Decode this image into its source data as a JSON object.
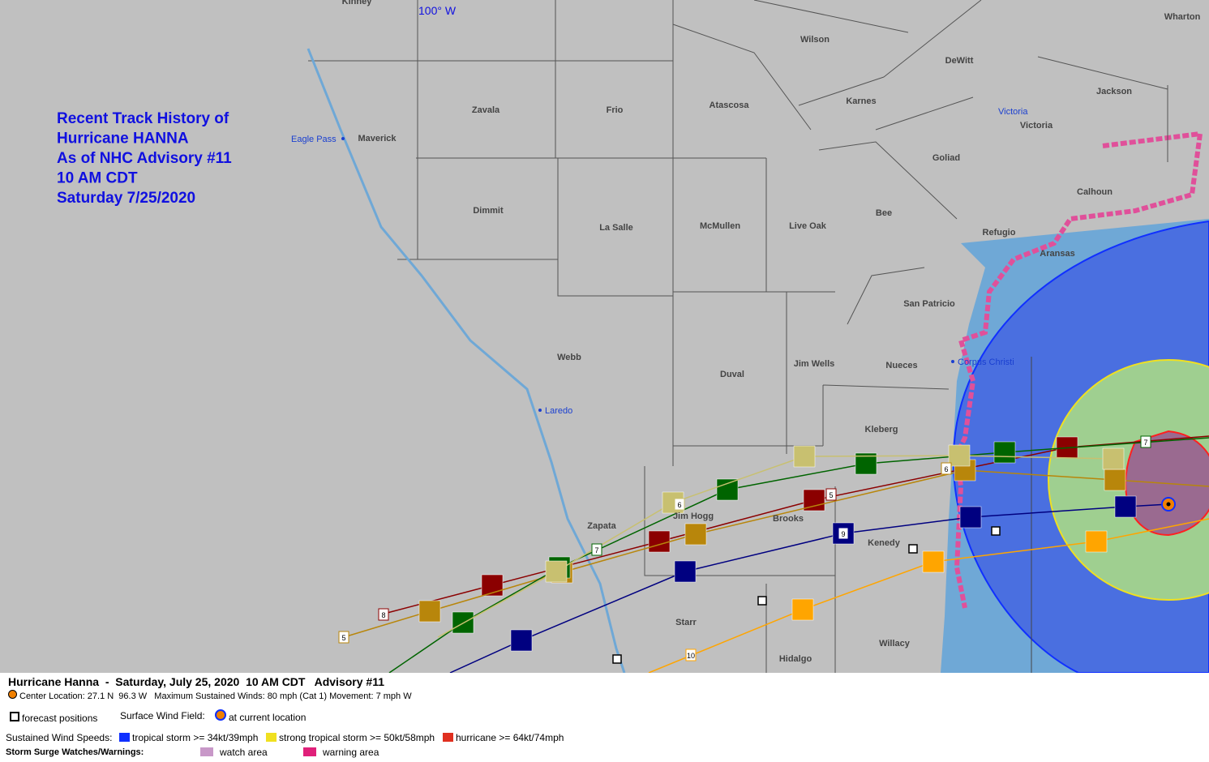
{
  "title_lines": [
    "Recent Track History of",
    "Hurricane HANNA",
    "As of NHC Advisory #11",
    "10 AM CDT",
    "Saturday 7/25/2020"
  ],
  "longitude_label": "100° W",
  "counties": [
    "Kinney",
    "Wharton",
    "Wilson",
    "DeWitt",
    "Jackson",
    "Zavala",
    "Frio",
    "Atascosa",
    "Karnes",
    "Victoria",
    "Maverick",
    "Goliad",
    "Calhoun",
    "Dimmit",
    "La Salle",
    "McMullen",
    "Live Oak",
    "Bee",
    "Refugio",
    "Aransas",
    "San Patricio",
    "Webb",
    "Duval",
    "Jim Wells",
    "Nueces",
    "Kleberg",
    "Jim Hogg",
    "Brooks",
    "Kenedy",
    "Zapata",
    "Starr",
    "Hidalgo",
    "Willacy"
  ],
  "cities": [
    "Eagle Pass",
    "Laredo",
    "Victoria",
    "Corpus Christi"
  ],
  "track_labels": [
    "8",
    "5",
    "7",
    "6",
    "5",
    "9",
    "10",
    "7",
    "6"
  ],
  "legend": {
    "heading": "Hurricane Hanna  -  Saturday, July 25, 2020  10 AM CDT   Advisory #11",
    "center": "Center Location: 27.1 N  96.3 W   Maximum Sustained Winds: 80 mph (Cat 1) Movement: 7 mph W",
    "forecast": "forecast positions",
    "wind_field": "Surface Wind Field:",
    "current": "at current location",
    "speeds_label": "Sustained Wind Speeds:",
    "ts": "tropical storm >= 34kt/39mph",
    "sts": "strong tropical storm >= 50kt/58mph",
    "hu": "hurricane >= 64kt/74mph",
    "surge_label": "Storm Surge Watches/Warnings:",
    "watch": "watch area",
    "warning": "warning area"
  }
}
